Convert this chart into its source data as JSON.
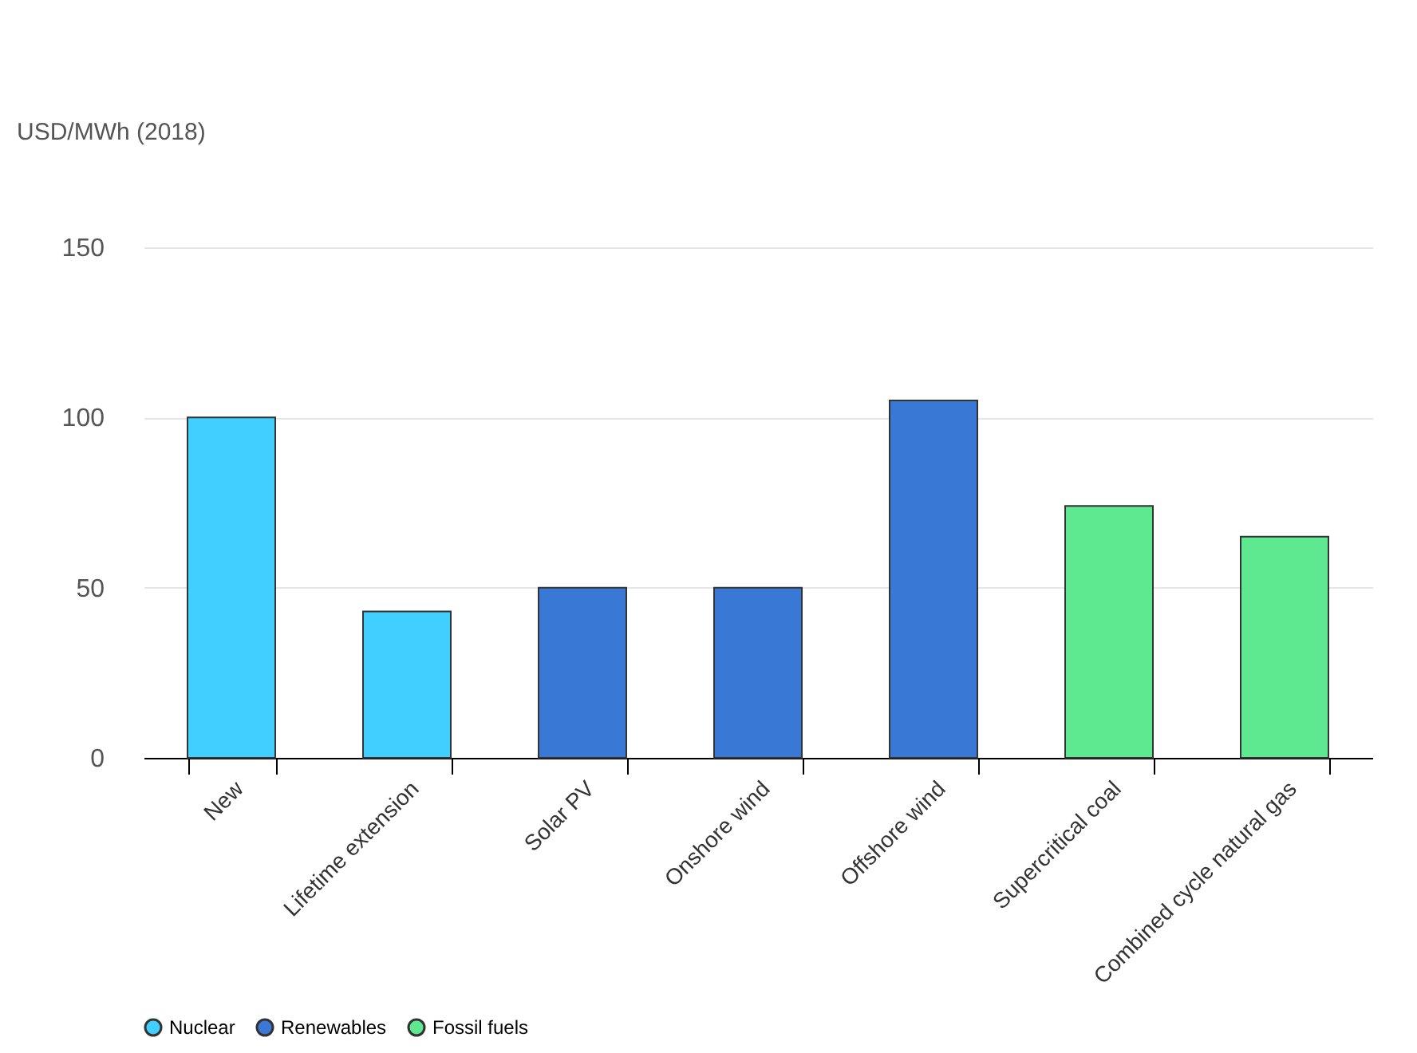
{
  "chart_data": {
    "type": "bar",
    "ylabel": "USD/MWh (2018)",
    "categories": [
      "New",
      "Lifetime extension",
      "Solar PV",
      "Onshore wind",
      "Offshore wind",
      "Supercritical coal",
      "Combined cycle natural gas"
    ],
    "series": [
      {
        "name": "Nuclear",
        "color": "#40cfff",
        "values": [
          100,
          43,
          null,
          null,
          null,
          null,
          null
        ]
      },
      {
        "name": "Renewables",
        "color": "#3a78d6",
        "values": [
          null,
          null,
          50,
          50,
          105,
          null,
          null
        ]
      },
      {
        "name": "Fossil fuels",
        "color": "#5ee890",
        "values": [
          null,
          null,
          null,
          null,
          null,
          74,
          65
        ]
      }
    ],
    "ylim": [
      0,
      150
    ],
    "yticks": [
      0,
      50,
      100,
      150
    ],
    "grid": "y",
    "legend": "bottom"
  }
}
